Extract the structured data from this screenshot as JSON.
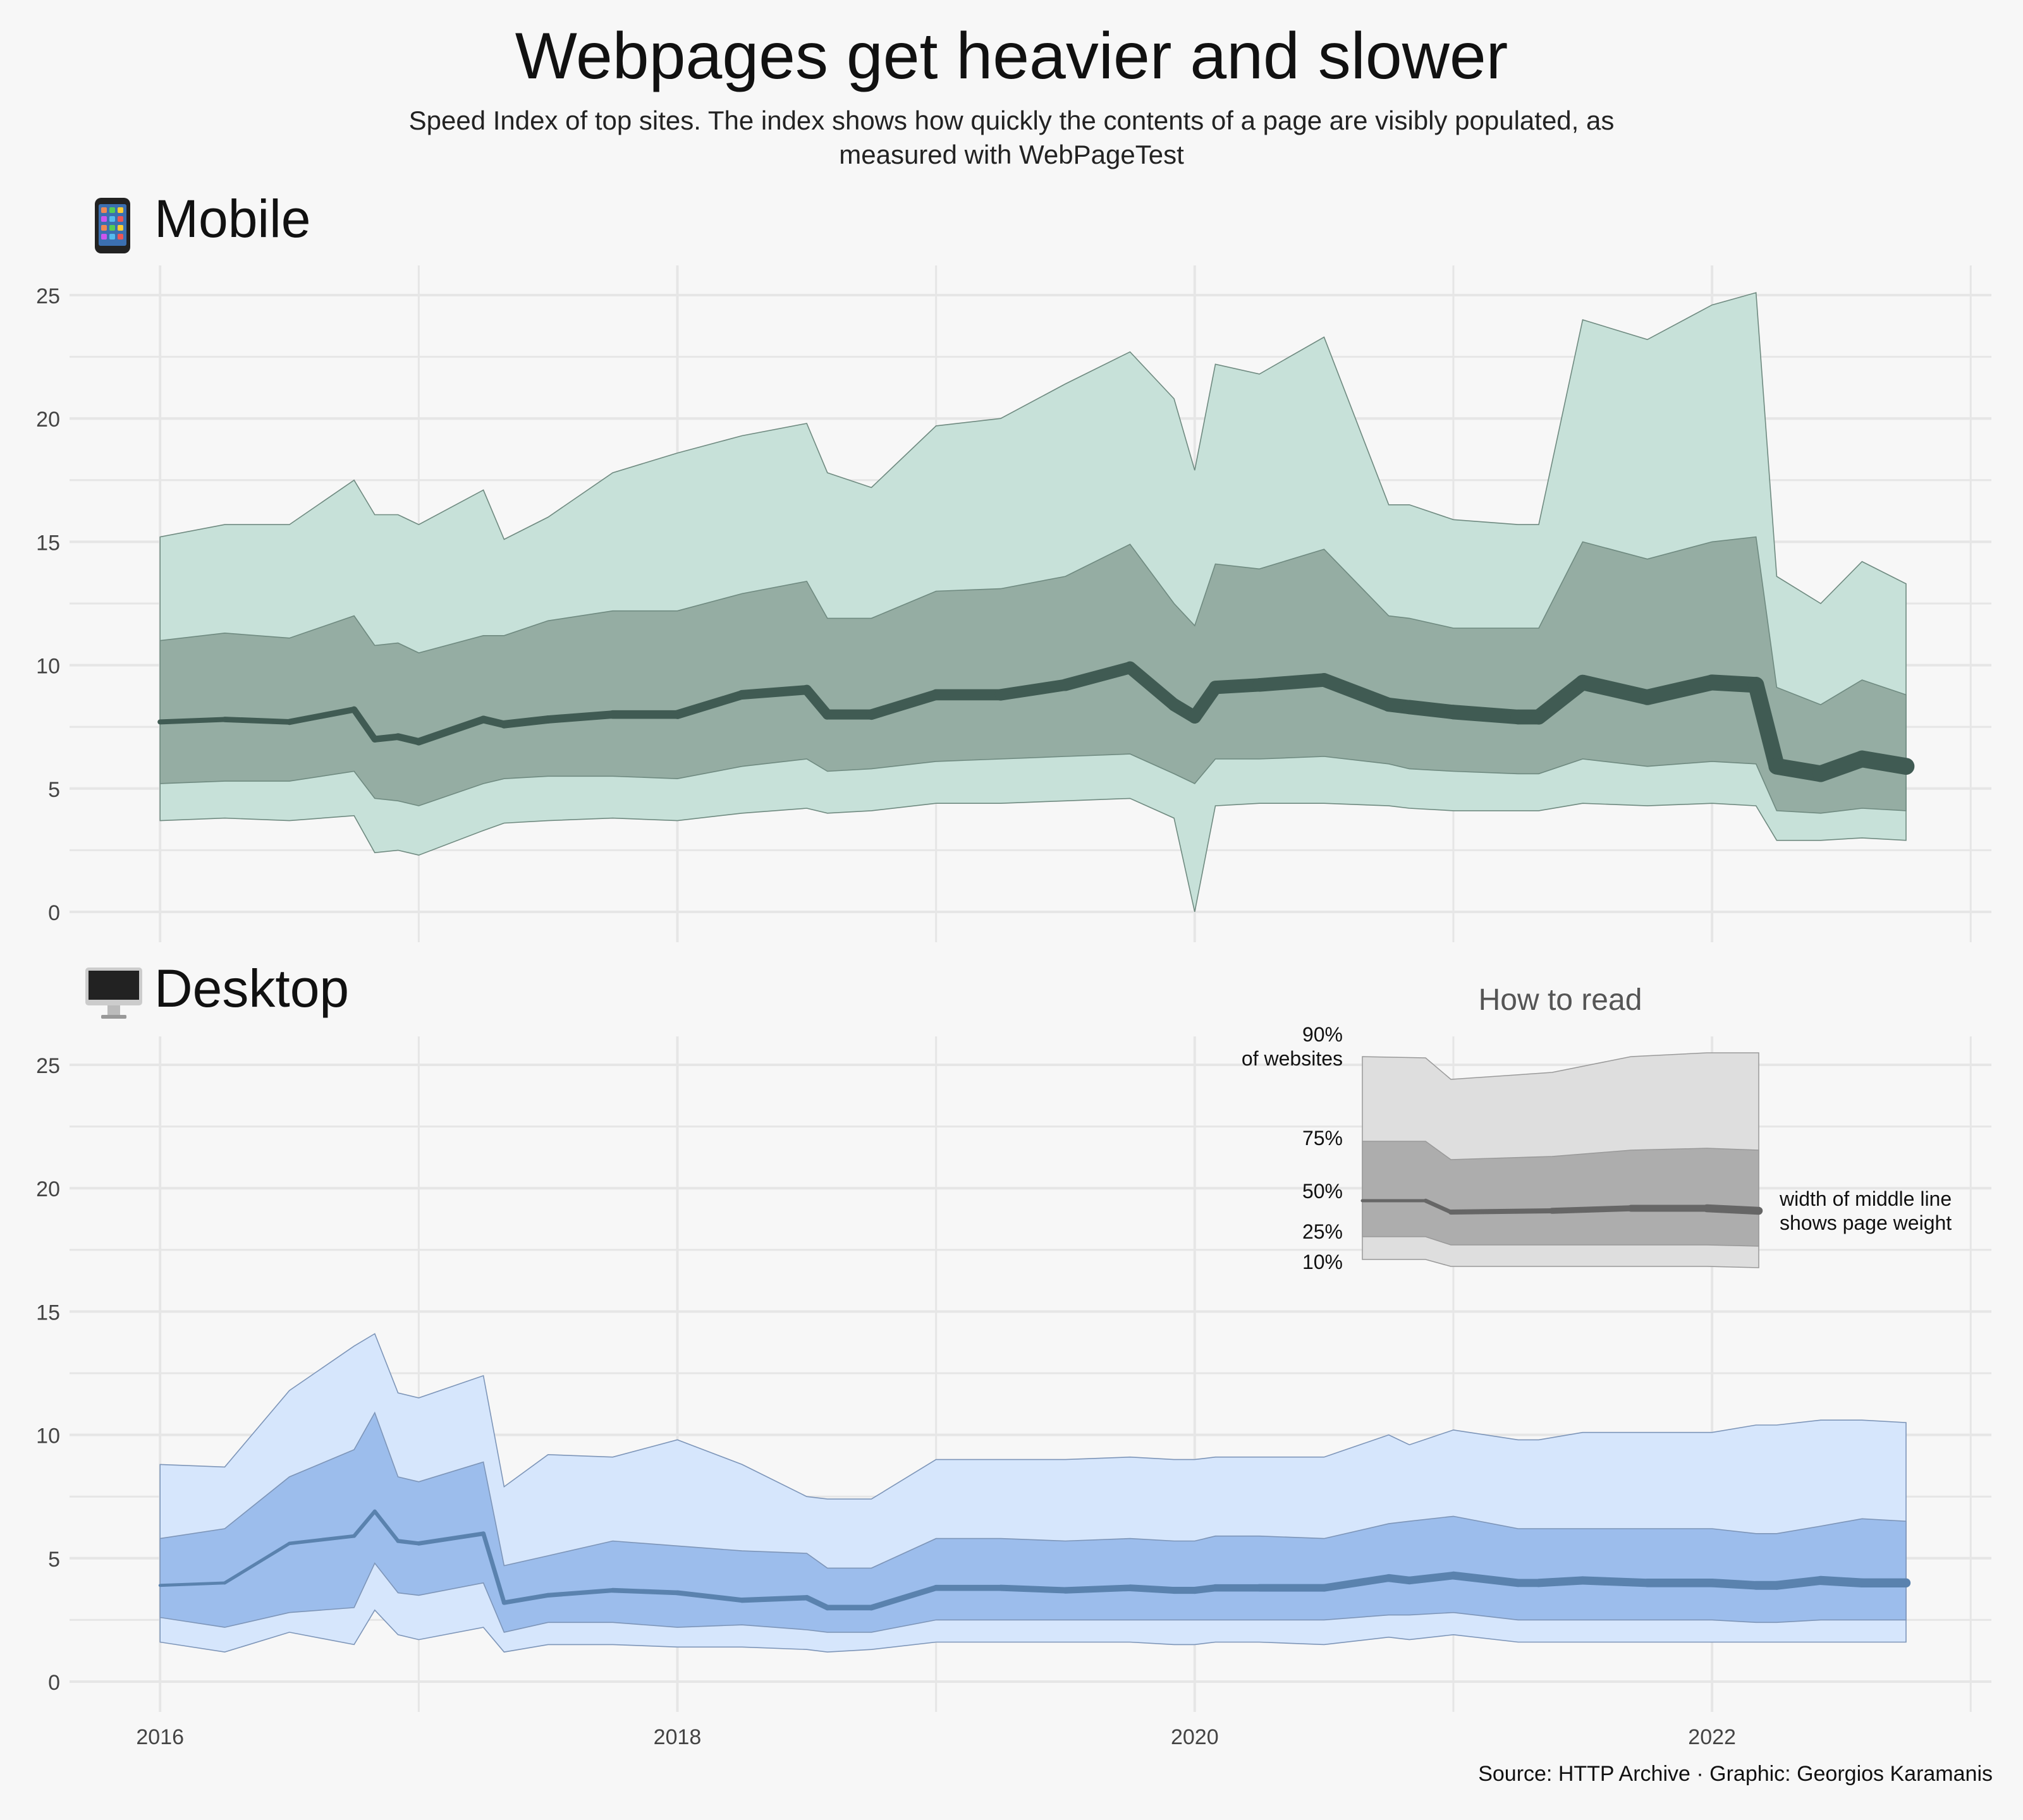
{
  "title": "Webpages get heavier and slower",
  "subtitle": "Speed Index of top sites. The index shows how quickly the contents of a page are visibly populated, as measured with WebPageTest",
  "source": "Source: HTTP Archive · Graphic: Georgios Karamanis",
  "panels": [
    {
      "label": "Mobile",
      "icon": "mobile-phone-icon"
    },
    {
      "label": "Desktop",
      "icon": "desktop-computer-icon"
    }
  ],
  "how_to_read": {
    "title": "How to read",
    "labels": [
      "90%\nof websites",
      "75%",
      "50%",
      "25%",
      "10%"
    ],
    "annotation": "width of middle line\nshows page weight"
  },
  "colors": {
    "mobile_outer": "#c7e1d9",
    "mobile_inner": "#95ada3",
    "mobile_line": "#405b53",
    "desktop_outer": "#d6e6fc",
    "desktop_inner": "#9cbdec",
    "desktop_line": "#5a82ae",
    "guide_outer": "#dedede",
    "guide_inner": "#adadad",
    "guide_line": "#666666",
    "background": "#f7f7f7",
    "grid": "#e6e6e6"
  },
  "chart_data": [
    {
      "type": "area",
      "panel": "Mobile",
      "xlabel": "",
      "ylabel": "",
      "ylim": [
        0,
        25
      ],
      "yticks": [
        0,
        5,
        10,
        15,
        20,
        25
      ],
      "xticks": [
        2016,
        2018,
        2020,
        2022
      ],
      "grid": true,
      "x": [
        2016.0,
        2016.25,
        2016.5,
        2016.75,
        2016.83,
        2016.92,
        2017.0,
        2017.25,
        2017.33,
        2017.5,
        2017.75,
        2018.0,
        2018.25,
        2018.5,
        2018.58,
        2018.75,
        2019.0,
        2019.25,
        2019.5,
        2019.75,
        2019.92,
        2020.0,
        2020.08,
        2020.25,
        2020.5,
        2020.75,
        2020.83,
        2021.0,
        2021.25,
        2021.33,
        2021.5,
        2021.75,
        2022.0,
        2022.17,
        2022.25,
        2022.42,
        2022.58,
        2022.75
      ],
      "series": [
        {
          "name": "p10",
          "values": [
            3.7,
            3.8,
            3.7,
            3.9,
            2.4,
            2.5,
            2.3,
            3.3,
            3.6,
            3.7,
            3.8,
            3.7,
            4.0,
            4.2,
            4.0,
            4.1,
            4.4,
            4.4,
            4.5,
            4.6,
            3.8,
            0.0,
            4.3,
            4.4,
            4.4,
            4.3,
            4.2,
            4.1,
            4.1,
            4.1,
            4.4,
            4.3,
            4.4,
            4.3,
            2.9,
            2.9,
            3.0,
            2.9
          ]
        },
        {
          "name": "p25",
          "values": [
            5.2,
            5.3,
            5.3,
            5.7,
            4.6,
            4.5,
            4.3,
            5.2,
            5.4,
            5.5,
            5.5,
            5.4,
            5.9,
            6.2,
            5.7,
            5.8,
            6.1,
            6.2,
            6.3,
            6.4,
            5.6,
            5.2,
            6.2,
            6.2,
            6.3,
            6.0,
            5.8,
            5.7,
            5.6,
            5.6,
            6.2,
            5.9,
            6.1,
            6.0,
            4.1,
            4.0,
            4.2,
            4.1
          ]
        },
        {
          "name": "p50",
          "values": [
            7.7,
            7.8,
            7.7,
            8.2,
            7.0,
            7.1,
            6.9,
            7.8,
            7.6,
            7.8,
            8.0,
            8.0,
            8.8,
            9.0,
            8.0,
            8.0,
            8.8,
            8.8,
            9.2,
            9.9,
            8.4,
            7.9,
            9.1,
            9.2,
            9.4,
            8.4,
            8.3,
            8.1,
            7.9,
            7.9,
            9.3,
            8.7,
            9.3,
            9.2,
            5.9,
            5.6,
            6.2,
            5.9
          ]
        },
        {
          "name": "p75",
          "values": [
            11.0,
            11.3,
            11.1,
            12.0,
            10.8,
            10.9,
            10.5,
            11.2,
            11.2,
            11.8,
            12.2,
            12.2,
            12.9,
            13.4,
            11.9,
            11.9,
            13.0,
            13.1,
            13.6,
            14.9,
            12.5,
            11.6,
            14.1,
            13.9,
            14.7,
            12.0,
            11.9,
            11.5,
            11.5,
            11.5,
            15.0,
            14.3,
            15.0,
            15.2,
            9.1,
            8.4,
            9.4,
            8.8
          ]
        },
        {
          "name": "p90",
          "values": [
            15.2,
            15.7,
            15.7,
            17.5,
            16.1,
            16.1,
            15.7,
            17.1,
            15.1,
            16.0,
            17.8,
            18.6,
            19.3,
            19.8,
            17.8,
            17.2,
            19.7,
            20.0,
            21.4,
            22.7,
            20.8,
            17.9,
            22.2,
            21.8,
            23.3,
            16.5,
            16.5,
            15.9,
            15.7,
            15.7,
            24.0,
            23.2,
            24.6,
            25.1,
            13.6,
            12.5,
            14.2,
            13.3
          ]
        },
        {
          "name": "weight",
          "values": [
            2.0,
            2.2,
            2.4,
            2.6,
            2.6,
            2.8,
            3.0,
            3.0,
            3.2,
            3.2,
            3.4,
            3.6,
            3.8,
            4.0,
            4.0,
            4.2,
            4.4,
            4.6,
            4.8,
            5.0,
            5.1,
            5.2,
            5.3,
            5.4,
            5.5,
            5.6,
            5.7,
            5.8,
            5.9,
            6.0,
            6.1,
            6.2,
            6.3,
            6.4,
            6.5,
            6.6,
            6.7,
            6.8
          ]
        }
      ]
    },
    {
      "type": "area",
      "panel": "Desktop",
      "xlabel": "",
      "ylabel": "",
      "ylim": [
        0,
        25
      ],
      "yticks": [
        0,
        5,
        10,
        15,
        20,
        25
      ],
      "xticks": [
        2016,
        2018,
        2020,
        2022
      ],
      "grid": true,
      "x": [
        2016.0,
        2016.25,
        2016.5,
        2016.75,
        2016.83,
        2016.92,
        2017.0,
        2017.25,
        2017.33,
        2017.5,
        2017.75,
        2018.0,
        2018.25,
        2018.5,
        2018.58,
        2018.75,
        2019.0,
        2019.25,
        2019.5,
        2019.75,
        2019.92,
        2020.0,
        2020.08,
        2020.25,
        2020.5,
        2020.75,
        2020.83,
        2021.0,
        2021.25,
        2021.33,
        2021.5,
        2021.75,
        2022.0,
        2022.17,
        2022.25,
        2022.42,
        2022.58,
        2022.75
      ],
      "series": [
        {
          "name": "p10",
          "values": [
            1.6,
            1.2,
            2.0,
            1.5,
            2.9,
            1.9,
            1.7,
            2.2,
            1.2,
            1.5,
            1.5,
            1.4,
            1.4,
            1.3,
            1.2,
            1.3,
            1.6,
            1.6,
            1.6,
            1.6,
            1.5,
            1.5,
            1.6,
            1.6,
            1.5,
            1.8,
            1.7,
            1.9,
            1.6,
            1.6,
            1.6,
            1.6,
            1.6,
            1.6,
            1.6,
            1.6,
            1.6,
            1.6
          ]
        },
        {
          "name": "p25",
          "values": [
            2.6,
            2.2,
            2.8,
            3.0,
            4.8,
            3.6,
            3.5,
            4.0,
            2.0,
            2.4,
            2.4,
            2.2,
            2.3,
            2.1,
            2.0,
            2.0,
            2.5,
            2.5,
            2.5,
            2.5,
            2.5,
            2.5,
            2.5,
            2.5,
            2.5,
            2.7,
            2.7,
            2.8,
            2.5,
            2.5,
            2.5,
            2.5,
            2.5,
            2.4,
            2.4,
            2.5,
            2.5,
            2.5
          ]
        },
        {
          "name": "p50",
          "values": [
            3.9,
            4.0,
            5.6,
            5.9,
            6.9,
            5.7,
            5.6,
            6.0,
            3.2,
            3.5,
            3.7,
            3.6,
            3.3,
            3.4,
            3.0,
            3.0,
            3.8,
            3.8,
            3.7,
            3.8,
            3.7,
            3.7,
            3.8,
            3.8,
            3.8,
            4.2,
            4.1,
            4.3,
            4.0,
            4.0,
            4.1,
            4.0,
            4.0,
            3.9,
            3.9,
            4.1,
            4.0,
            4.0
          ]
        },
        {
          "name": "p75",
          "values": [
            5.8,
            6.2,
            8.3,
            9.4,
            10.9,
            8.3,
            8.1,
            8.9,
            4.7,
            5.1,
            5.7,
            5.5,
            5.3,
            5.2,
            4.6,
            4.6,
            5.8,
            5.8,
            5.7,
            5.8,
            5.7,
            5.7,
            5.9,
            5.9,
            5.8,
            6.4,
            6.5,
            6.7,
            6.2,
            6.2,
            6.2,
            6.2,
            6.2,
            6.0,
            6.0,
            6.3,
            6.6,
            6.5
          ]
        },
        {
          "name": "p90",
          "values": [
            8.8,
            8.7,
            11.8,
            13.6,
            14.1,
            11.7,
            11.5,
            12.4,
            7.9,
            9.2,
            9.1,
            9.8,
            8.8,
            7.5,
            7.4,
            7.4,
            9.0,
            9.0,
            9.0,
            9.1,
            9.0,
            9.0,
            9.1,
            9.1,
            9.1,
            10.0,
            9.6,
            10.2,
            9.8,
            9.8,
            10.1,
            10.1,
            10.1,
            10.4,
            10.4,
            10.6,
            10.6,
            10.5
          ]
        },
        {
          "name": "weight",
          "values": [
            1.2,
            1.3,
            1.4,
            1.5,
            1.5,
            1.6,
            1.7,
            1.7,
            1.8,
            1.8,
            1.9,
            2.0,
            2.1,
            2.2,
            2.2,
            2.3,
            2.4,
            2.5,
            2.6,
            2.7,
            2.8,
            2.8,
            2.9,
            3.0,
            3.0,
            3.1,
            3.1,
            3.2,
            3.2,
            3.3,
            3.3,
            3.4,
            3.4,
            3.5,
            3.5,
            3.6,
            3.6,
            3.7
          ]
        }
      ]
    }
  ]
}
